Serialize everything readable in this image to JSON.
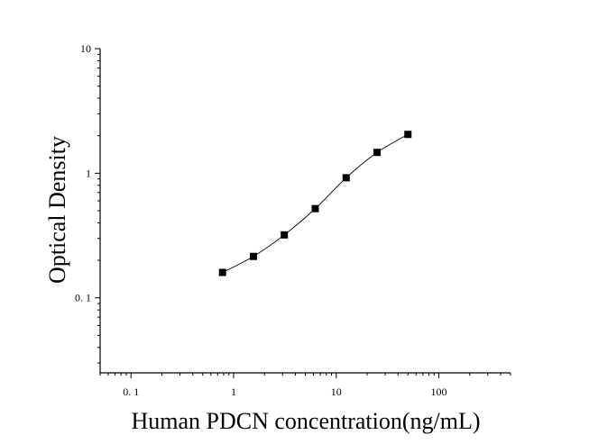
{
  "chart_data": {
    "type": "scatter",
    "title": "",
    "xlabel": "Human PDCN concentration(ng/mL)",
    "ylabel": "Optical Density",
    "x_scale": "log",
    "y_scale": "log",
    "xlim": [
      0.05,
      500
    ],
    "ylim": [
      0.025,
      10
    ],
    "x_ticks": [
      0.1,
      1,
      10,
      100
    ],
    "x_tick_labels": [
      "0. 1",
      "1",
      "10",
      "100"
    ],
    "y_ticks": [
      0.1,
      1,
      10
    ],
    "y_tick_labels": [
      "0. 1",
      "1",
      "10"
    ],
    "grid": false,
    "legend": "none",
    "series": [
      {
        "x": [
          0.78,
          1.56,
          3.12,
          6.25,
          12.5,
          25,
          50
        ],
        "y": [
          0.16,
          0.215,
          0.32,
          0.52,
          0.92,
          1.47,
          2.05
        ],
        "marker": "square",
        "color": "#000000",
        "fit_curve": true
      }
    ]
  }
}
